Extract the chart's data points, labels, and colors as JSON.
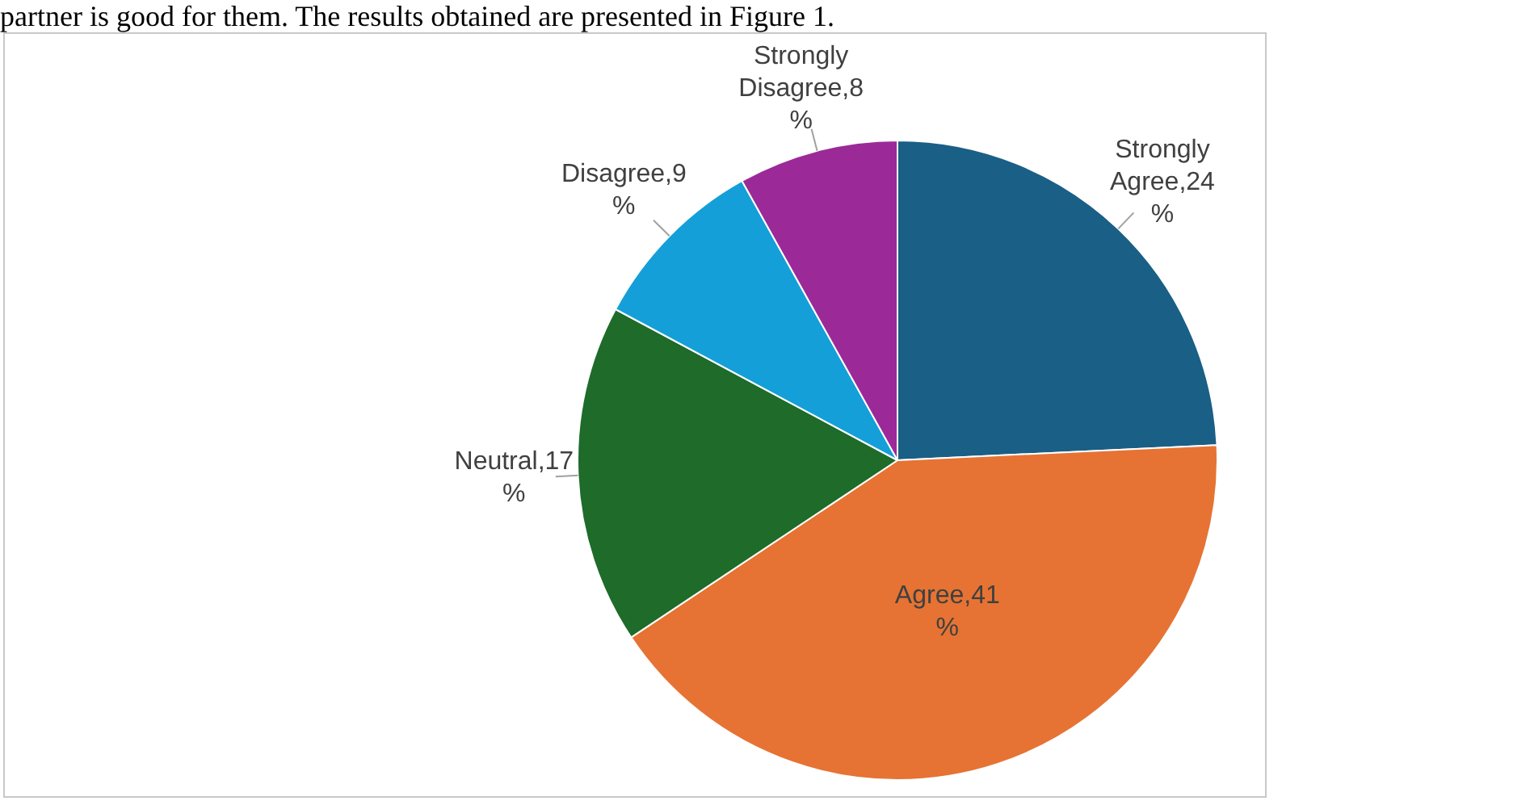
{
  "chart_data": {
    "type": "pie",
    "annotations": [
      "partner is good for them. The results obtained are presented in Figure 1."
    ],
    "categories": [
      "Strongly Agree",
      "Agree",
      "Neutral",
      "Disagree",
      "Strongly Disagree"
    ],
    "values": [
      24,
      41,
      17,
      9,
      8
    ],
    "value_labels": [
      "24 %",
      "41 %",
      "17 %",
      "9 %",
      "8 %"
    ],
    "colors": [
      "#1a5f85",
      "#e67333",
      "#1e6b2a",
      "#149fd8",
      "#9b2a98"
    ],
    "legend": false
  }
}
